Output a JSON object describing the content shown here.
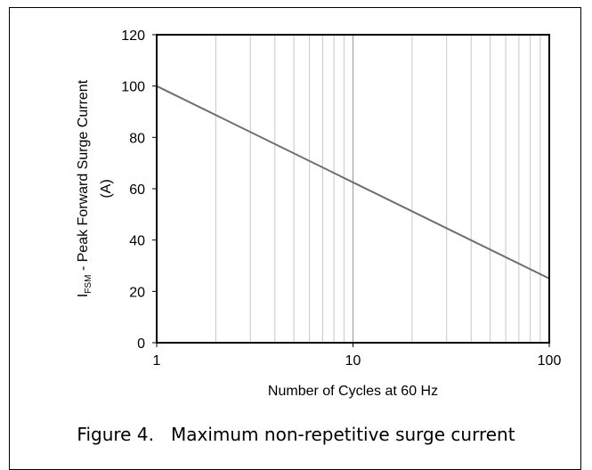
{
  "chart_data": {
    "type": "line",
    "x_scale": "log",
    "xlim": [
      1,
      100
    ],
    "ylim": [
      0,
      120
    ],
    "xlabel": "Number of Cycles at 60 Hz",
    "ylabel_symbol": "I",
    "ylabel_subscript": "FSM",
    "ylabel_text": " - Peak Forward Surge Current",
    "ylabel_unit": "(A)",
    "x_ticks": [
      {
        "value": 1,
        "label": "1"
      },
      {
        "value": 10,
        "label": "10"
      },
      {
        "value": 100,
        "label": "100"
      }
    ],
    "y_ticks": [
      {
        "value": 0,
        "label": "0"
      },
      {
        "value": 20,
        "label": "20"
      },
      {
        "value": 40,
        "label": "40"
      },
      {
        "value": 60,
        "label": "60"
      },
      {
        "value": 80,
        "label": "80"
      },
      {
        "value": 100,
        "label": "100"
      },
      {
        "value": 120,
        "label": "120"
      }
    ],
    "grid": true,
    "series": [
      {
        "x": [
          1,
          100
        ],
        "y": [
          100,
          25
        ],
        "color": "#6e6e6e"
      }
    ]
  },
  "caption": "Figure 4.   Maximum non-repetitive surge current"
}
